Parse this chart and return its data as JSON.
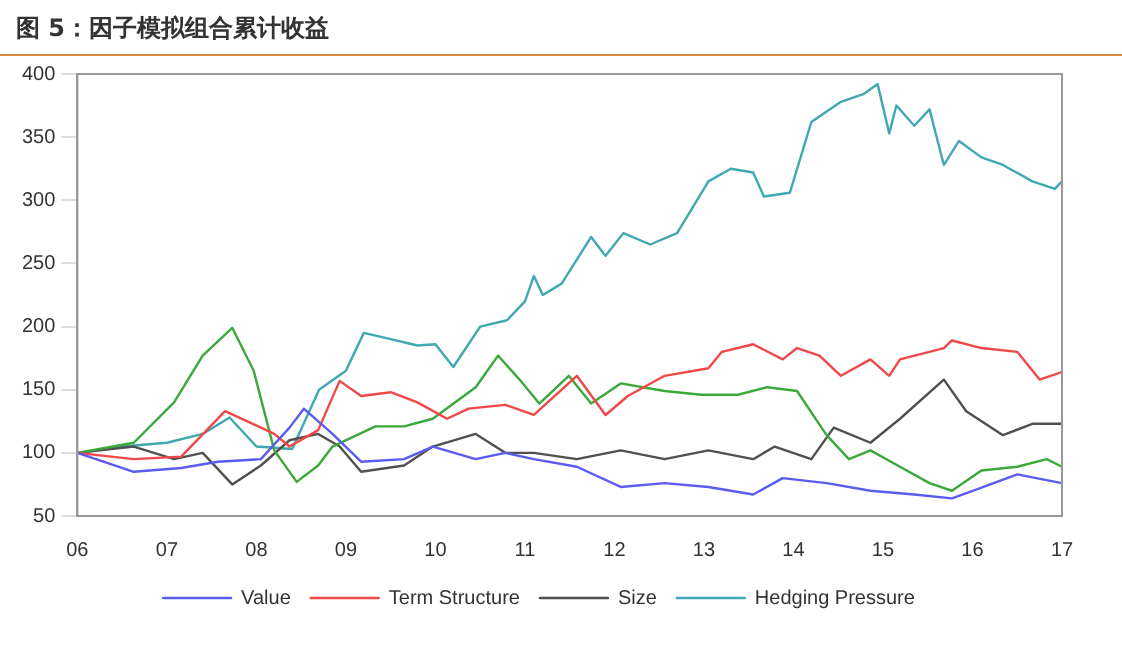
{
  "chart_data": {
    "type": "line",
    "title": "图 5：因子模拟组合累计收益",
    "xlim": [
      2006,
      2017
    ],
    "xticks": [
      {
        "value": 2006,
        "label": "06"
      },
      {
        "value": 2007,
        "label": "07"
      },
      {
        "value": 2008,
        "label": "08"
      },
      {
        "value": 2009,
        "label": "09"
      },
      {
        "value": 2010,
        "label": "10"
      },
      {
        "value": 2011,
        "label": "11"
      },
      {
        "value": 2012,
        "label": "12"
      },
      {
        "value": 2013,
        "label": "13"
      },
      {
        "value": 2014,
        "label": "14"
      },
      {
        "value": 2015,
        "label": "15"
      },
      {
        "value": 2016,
        "label": "16"
      },
      {
        "value": 2017,
        "label": "17"
      }
    ],
    "ylim": [
      50,
      400
    ],
    "yticks": [
      50,
      100,
      150,
      200,
      250,
      300,
      350,
      400
    ],
    "grid": false,
    "legend": "bottom",
    "marker": "none",
    "line_style": "solid",
    "series": [
      {
        "name": "Value",
        "color": "#5b5bf0",
        "x": [
          2006,
          2006.63,
          2007.16,
          2007.57,
          2008.05,
          2008.37,
          2008.53,
          2008.85,
          2009.17,
          2009.65,
          2009.97,
          2010.45,
          2010.78,
          2011.1,
          2011.58,
          2012.07,
          2012.56,
          2013.05,
          2013.55,
          2013.88,
          2014.37,
          2014.86,
          2015.35,
          2015.77,
          2016.01,
          2016.5,
          2017
        ],
        "values": [
          100,
          85,
          88,
          93,
          95,
          120,
          135,
          115,
          93,
          95,
          105,
          95,
          100,
          95,
          89,
          73,
          76,
          73,
          67,
          80,
          76,
          70,
          67,
          64,
          70,
          83,
          76
        ]
      },
      {
        "name": "Term Structure",
        "color": "#f04848",
        "x": [
          2006,
          2006.63,
          2007.16,
          2007.65,
          2007.9,
          2008.2,
          2008.37,
          2008.69,
          2008.93,
          2009.17,
          2009.5,
          2009.8,
          2010.13,
          2010.37,
          2010.78,
          2011.1,
          2011.58,
          2011.9,
          2012.15,
          2012.56,
          2013.05,
          2013.2,
          2013.55,
          2013.88,
          2014.04,
          2014.29,
          2014.53,
          2014.86,
          2015.07,
          2015.19,
          2015.68,
          2015.77,
          2016.1,
          2016.5,
          2016.75,
          2017
        ],
        "values": [
          100,
          95,
          97,
          133,
          125,
          115,
          105,
          118,
          157,
          145,
          148,
          140,
          127,
          135,
          138,
          130,
          161,
          130,
          145,
          161,
          167,
          180,
          186,
          174,
          183,
          177,
          161,
          174,
          161,
          174,
          183,
          189,
          183,
          180,
          158,
          164
        ]
      },
      {
        "color": "#3aa83a",
        "x": [
          2006,
          2006.63,
          2007.08,
          2007.4,
          2007.73,
          2007.97,
          2008.2,
          2008.45,
          2008.69,
          2008.85,
          2009.33,
          2009.65,
          2009.97,
          2010.45,
          2010.7,
          2010.94,
          2011.16,
          2011.49,
          2011.74,
          2012.07,
          2012.56,
          2012.97,
          2013.38,
          2013.71,
          2014.04,
          2014.37,
          2014.62,
          2014.86,
          2015.19,
          2015.52,
          2015.77,
          2016.1,
          2016.5,
          2016.83,
          2017
        ],
        "values": [
          100,
          108,
          140,
          177,
          199,
          165,
          102,
          77,
          90,
          105,
          121,
          121,
          127,
          152,
          177,
          158,
          139,
          161,
          139,
          155,
          149,
          146,
          146,
          152,
          149,
          114,
          95,
          102,
          89,
          76,
          70,
          86,
          89,
          95,
          89
        ]
      },
      {
        "name": "Size",
        "color": "#505050",
        "x": [
          2006,
          2006.63,
          2007.08,
          2007.4,
          2007.73,
          2008.05,
          2008.37,
          2008.69,
          2008.93,
          2009.17,
          2009.65,
          2009.97,
          2010.45,
          2010.78,
          2011.1,
          2011.58,
          2012.07,
          2012.56,
          2013.05,
          2013.55,
          2013.79,
          2014.2,
          2014.45,
          2014.86,
          2015.19,
          2015.68,
          2015.93,
          2016.34,
          2016.67,
          2017
        ],
        "values": [
          100,
          105,
          95,
          100,
          75,
          90,
          110,
          115,
          105,
          85,
          90,
          105,
          115,
          100,
          100,
          95,
          102,
          95,
          102,
          95,
          105,
          95,
          120,
          108,
          127,
          158,
          133,
          114,
          123,
          123
        ]
      },
      {
        "name": "Hedging Pressure",
        "color": "#3fa8b0",
        "x": [
          2006,
          2006.5,
          2007,
          2007.4,
          2007.7,
          2008,
          2008.4,
          2008.7,
          2009,
          2009.2,
          2009.5,
          2009.8,
          2010,
          2010.2,
          2010.5,
          2010.8,
          2011,
          2011.1,
          2011.2,
          2011.41,
          2011.74,
          2011.9,
          2012.1,
          2012.4,
          2012.7,
          2013.05,
          2013.3,
          2013.55,
          2013.67,
          2013.96,
          2014.2,
          2014.53,
          2014.78,
          2014.94,
          2015.07,
          2015.15,
          2015.35,
          2015.52,
          2015.68,
          2015.85,
          2016.1,
          2016.34,
          2016.67,
          2016.92,
          2017
        ],
        "values": [
          100,
          105,
          108,
          115,
          128,
          105,
          103,
          150,
          165,
          195,
          190,
          185,
          186,
          168,
          200,
          205,
          220,
          240,
          225,
          234,
          271,
          256,
          274,
          265,
          274,
          315,
          325,
          322,
          303,
          306,
          362,
          378,
          384,
          392,
          353,
          375,
          359,
          372,
          328,
          347,
          334,
          328,
          315,
          309,
          315
        ]
      }
    ]
  }
}
